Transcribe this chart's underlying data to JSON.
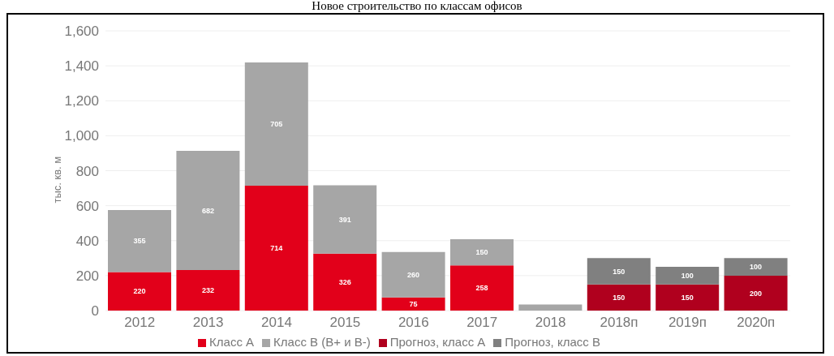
{
  "chart_data": {
    "type": "bar",
    "title": "Новое строительство по классам офисов",
    "ylabel": "тыс. кв. м",
    "categories": [
      "2012",
      "2013",
      "2014",
      "2015",
      "2016",
      "2017",
      "2018",
      "2018п",
      "2019п",
      "2020п"
    ],
    "stacked": true,
    "series": [
      {
        "name": "Класс А",
        "color": "#e2001a",
        "values": [
          220,
          232,
          714,
          326,
          75,
          258,
          null,
          null,
          null,
          null
        ],
        "value_labels": [
          "220",
          "232",
          "714",
          "326",
          "75",
          "258",
          null,
          null,
          null,
          null
        ]
      },
      {
        "name": "Класс В (В+ и В-)",
        "color": "#a6a6a6",
        "values": [
          355,
          682,
          705,
          391,
          260,
          150,
          35,
          null,
          null,
          null
        ],
        "value_labels": [
          "355",
          "682",
          "705",
          "391",
          "260",
          "150",
          null,
          null,
          null,
          null
        ]
      },
      {
        "name": "Прогноз, класс  А",
        "color": "#b0001e",
        "values": [
          null,
          null,
          null,
          null,
          null,
          null,
          null,
          150,
          150,
          200
        ],
        "value_labels": [
          null,
          null,
          null,
          null,
          null,
          null,
          null,
          "150",
          "150",
          "200"
        ]
      },
      {
        "name": "Прогноз, класс  В",
        "color": "#808080",
        "values": [
          null,
          null,
          null,
          null,
          null,
          null,
          null,
          150,
          100,
          100
        ],
        "value_labels": [
          null,
          null,
          null,
          null,
          null,
          null,
          null,
          "150",
          "100",
          "100"
        ]
      }
    ],
    "ylim": [
      0,
      1600
    ],
    "yticks": [
      0,
      200,
      400,
      600,
      800,
      {
        "value": 1000,
        "label": "1,000"
      },
      {
        "value": 1200,
        "label": "1,200"
      },
      {
        "value": 1400,
        "label": "1,400"
      },
      {
        "value": 1600,
        "label": "1,600"
      }
    ],
    "grid": "y",
    "legend": "bottom"
  }
}
